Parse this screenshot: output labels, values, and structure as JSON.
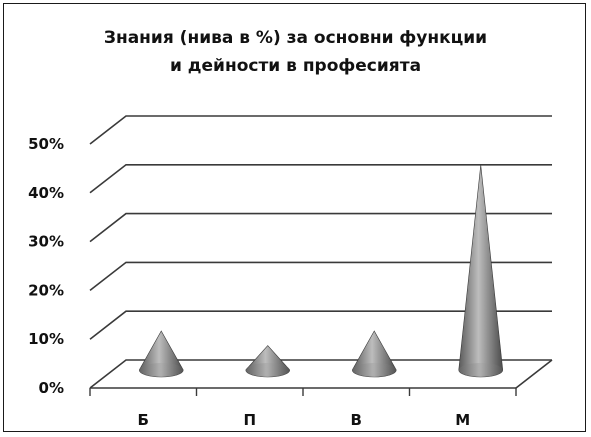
{
  "chart_data": {
    "type": "bar",
    "style": "3d-cone",
    "title_lines": [
      "Знания (нива в %) за основни функции",
      "и дейности в професията"
    ],
    "categories": [
      "Б",
      "П",
      "В",
      "М"
    ],
    "values": [
      8,
      5,
      8,
      42
    ],
    "ylim": [
      0,
      50
    ],
    "yticks": [
      "0%",
      "10%",
      "20%",
      "30%",
      "40%",
      "50%"
    ],
    "xlabel": "",
    "ylabel": "",
    "grid": true,
    "legend": "none",
    "colors": {
      "cone_dark": "#4a4a4a",
      "cone_mid": "#9a9a9a",
      "cone_light": "#d0d0d0",
      "grid": "#3a3a3a",
      "text": "#111111"
    }
  }
}
